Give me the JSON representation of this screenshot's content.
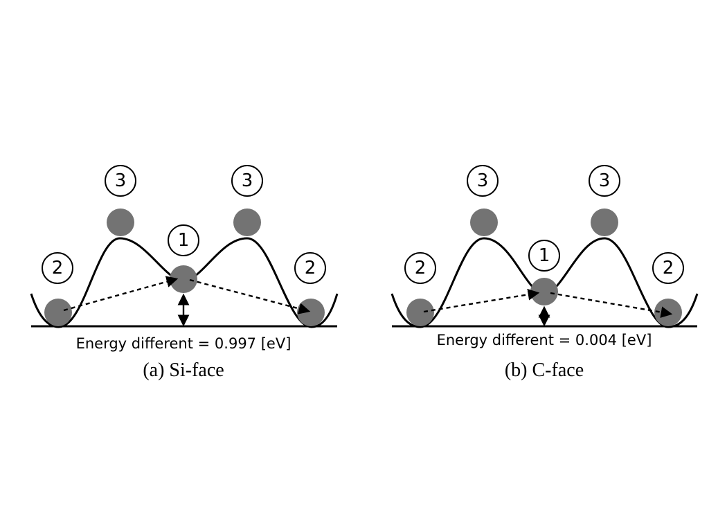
{
  "panels": [
    {
      "energy_text": "Energy different = 0.997 [eV]",
      "caption": "(a) Si-face",
      "labels": {
        "site_left": "2",
        "peak_left": "3",
        "center": "1",
        "peak_right": "3",
        "site_right": "2"
      }
    },
    {
      "energy_text": "Energy different = 0.004 [eV]",
      "caption": "(b) C-face",
      "labels": {
        "site_left": "2",
        "peak_left": "3",
        "center": "1",
        "peak_right": "3",
        "site_right": "2"
      }
    }
  ],
  "colors": {
    "ball": "#737373",
    "line": "#000000"
  }
}
